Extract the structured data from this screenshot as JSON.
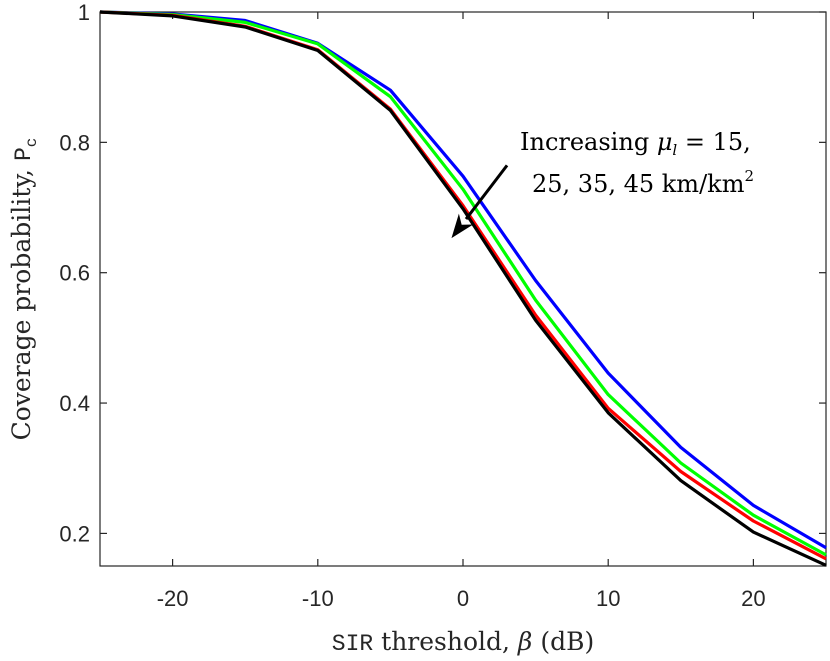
{
  "chart_data": {
    "type": "line",
    "title": "",
    "xlabel": {
      "prefix": "SIR",
      "rest": " threshold, ",
      "symbol": "β",
      "unit": " (dB)"
    },
    "ylabel": {
      "text": "Coverage probability, ",
      "symbol": "P",
      "subscript": "c"
    },
    "xlim": [
      -25,
      25
    ],
    "ylim": [
      0.15,
      1.0
    ],
    "xticks": [
      -20,
      -10,
      0,
      10,
      20
    ],
    "xtick_labels": [
      "-20",
      "-10",
      "0",
      "10",
      "20"
    ],
    "yticks": [
      0.2,
      0.4,
      0.6,
      0.8,
      1.0
    ],
    "ytick_labels": [
      "0.2",
      "0.4",
      "0.6",
      "0.8",
      "1"
    ],
    "grid": false,
    "x": [
      -25,
      -20,
      -15,
      -10,
      -5,
      0,
      5,
      10,
      15,
      20,
      25
    ],
    "series": [
      {
        "name": "μl = 15 km/km²",
        "color": "#0000ff",
        "values": [
          1.0,
          0.997,
          0.987,
          0.952,
          0.88,
          0.748,
          0.588,
          0.446,
          0.332,
          0.243,
          0.178
        ]
      },
      {
        "name": "μl = 25 km/km²",
        "color": "#00ff00",
        "values": [
          1.0,
          0.996,
          0.984,
          0.951,
          0.87,
          0.728,
          0.558,
          0.413,
          0.308,
          0.228,
          0.167
        ]
      },
      {
        "name": "μl = 35 km/km²",
        "color": "#ff0000",
        "values": [
          1.0,
          0.995,
          0.978,
          0.942,
          0.851,
          0.703,
          0.535,
          0.392,
          0.295,
          0.219,
          0.161
        ]
      },
      {
        "name": "μl = 45 km/km²",
        "color": "#000000",
        "values": [
          1.0,
          0.994,
          0.977,
          0.941,
          0.849,
          0.698,
          0.527,
          0.385,
          0.281,
          0.202,
          0.151
        ]
      }
    ],
    "annotation": {
      "line1_text": "Increasing ",
      "mu": "μ",
      "mu_sub": "l",
      "line1_rest": " = 15,",
      "line2_text": "25, 35, 45 km/km",
      "line2_sup": "2",
      "arrow_from": [
        2,
        0.8
      ],
      "arrow_to": [
        -1,
        0.63
      ]
    }
  }
}
